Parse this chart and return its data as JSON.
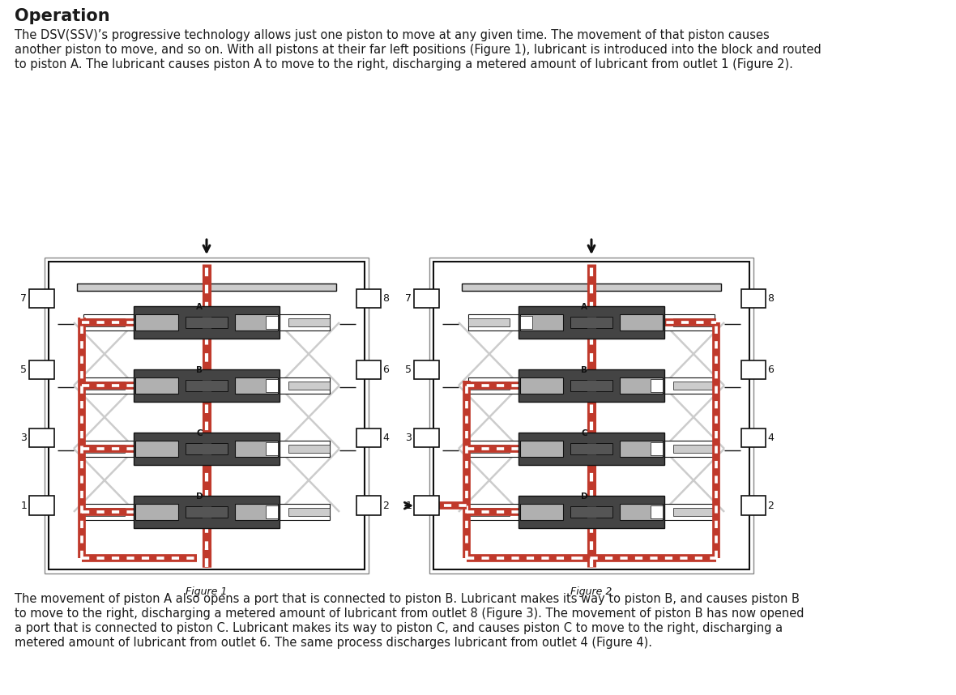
{
  "title": "Operation",
  "title_fontsize": 15,
  "body_fontsize": 10.5,
  "para1_line1": "The DSV(SSV)’s progressive technology allows just one piston to move at any given time. The movement of that piston causes",
  "para1_line2": "another piston to move, and so on. With all pistons at their far left positions (Figure 1), lubricant is introduced into the block and routed",
  "para1_line3": "to piston A. The lubricant causes piston A to move to the right, discharging a metered amount of lubricant from outlet 1 (Figure 2).",
  "para2_line1": "The movement of piston A also opens a port that is connected to piston B. Lubricant makes its way to piston B, and causes piston B",
  "para2_line2": "to move to the right, discharging a metered amount of lubricant from outlet 8 (Figure 3). The movement of piston B has now opened",
  "para2_line3": "a port that is connected to piston C. Lubricant makes its way to piston C, and causes piston C to move to the right, discharging a",
  "para2_line4": "metered amount of lubricant from outlet 6. The same process discharges lubricant from outlet 4 (Figure 4).",
  "fig1_caption": "Figure 1",
  "fig2_caption": "Figure 2",
  "bg_color": "#ffffff",
  "text_color": "#1a1a1a",
  "red": "#c0392b",
  "white": "#ffffff",
  "black": "#111111",
  "dark_gray": "#555555",
  "mid_gray": "#888888",
  "light_gray": "#cccccc",
  "piston_gray": "#b0b0b0",
  "housing_dark": "#444444"
}
